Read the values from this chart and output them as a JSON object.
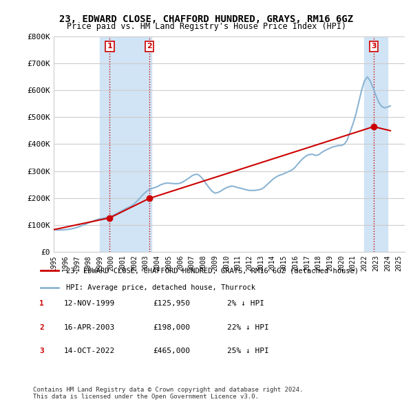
{
  "title": "23, EDWARD CLOSE, CHAFFORD HUNDRED, GRAYS, RM16 6GZ",
  "subtitle": "Price paid vs. HM Land Registry's House Price Index (HPI)",
  "ylabel_ticks": [
    "£0",
    "£100K",
    "£200K",
    "£300K",
    "£400K",
    "£500K",
    "£600K",
    "£700K",
    "£800K"
  ],
  "ytick_values": [
    0,
    100000,
    200000,
    300000,
    400000,
    500000,
    600000,
    700000,
    800000
  ],
  "ylim": [
    0,
    800000
  ],
  "xlim_start": 1995.0,
  "xlim_end": 2025.5,
  "sale_dates": [
    1999.87,
    2003.29,
    2022.79
  ],
  "sale_prices": [
    125950,
    198000,
    465000
  ],
  "sale_labels": [
    "1",
    "2",
    "3"
  ],
  "hpi_line_color": "#8ab4d4",
  "price_line_color": "#cc0000",
  "sale_marker_color": "#cc0000",
  "vline_color": "#cc0000",
  "vline_style": ":",
  "highlight_box_color": "#d0e4f5",
  "highlight_boxes": [
    {
      "x_start": 1999.0,
      "x_end": 2003.5
    },
    {
      "x_start": 2022.0,
      "x_end": 2024.0
    }
  ],
  "legend_line1": "23, EDWARD CLOSE, CHAFFORD HUNDRED, GRAYS, RM16 6GZ (detached house)",
  "legend_line2": "HPI: Average price, detached house, Thurrock",
  "table_rows": [
    {
      "num": "1",
      "date": "12-NOV-1999",
      "price": "£125,950",
      "change": "2% ↓ HPI"
    },
    {
      "num": "2",
      "date": "16-APR-2003",
      "price": "£198,000",
      "change": "22% ↓ HPI"
    },
    {
      "num": "3",
      "date": "14-OCT-2022",
      "price": "£465,000",
      "change": "25% ↓ HPI"
    }
  ],
  "footer_text": "Contains HM Land Registry data © Crown copyright and database right 2024.\nThis data is licensed under the Open Government Licence v3.0.",
  "xtick_years": [
    1995,
    1996,
    1997,
    1998,
    1999,
    2000,
    2001,
    2002,
    2003,
    2004,
    2005,
    2006,
    2007,
    2008,
    2009,
    2010,
    2011,
    2012,
    2013,
    2014,
    2015,
    2016,
    2017,
    2018,
    2019,
    2020,
    2021,
    2022,
    2023,
    2024,
    2025
  ],
  "hpi_data_x": [
    1995.0,
    1995.25,
    1995.5,
    1995.75,
    1996.0,
    1996.25,
    1996.5,
    1996.75,
    1997.0,
    1997.25,
    1997.5,
    1997.75,
    1998.0,
    1998.25,
    1998.5,
    1998.75,
    1999.0,
    1999.25,
    1999.5,
    1999.75,
    2000.0,
    2000.25,
    2000.5,
    2000.75,
    2001.0,
    2001.25,
    2001.5,
    2001.75,
    2002.0,
    2002.25,
    2002.5,
    2002.75,
    2003.0,
    2003.25,
    2003.5,
    2003.75,
    2004.0,
    2004.25,
    2004.5,
    2004.75,
    2005.0,
    2005.25,
    2005.5,
    2005.75,
    2006.0,
    2006.25,
    2006.5,
    2006.75,
    2007.0,
    2007.25,
    2007.5,
    2007.75,
    2008.0,
    2008.25,
    2008.5,
    2008.75,
    2009.0,
    2009.25,
    2009.5,
    2009.75,
    2010.0,
    2010.25,
    2010.5,
    2010.75,
    2011.0,
    2011.25,
    2011.5,
    2011.75,
    2012.0,
    2012.25,
    2012.5,
    2012.75,
    2013.0,
    2013.25,
    2013.5,
    2013.75,
    2014.0,
    2014.25,
    2014.5,
    2014.75,
    2015.0,
    2015.25,
    2015.5,
    2015.75,
    2016.0,
    2016.25,
    2016.5,
    2016.75,
    2017.0,
    2017.25,
    2017.5,
    2017.75,
    2018.0,
    2018.25,
    2018.5,
    2018.75,
    2019.0,
    2019.25,
    2019.5,
    2019.75,
    2020.0,
    2020.25,
    2020.5,
    2020.75,
    2021.0,
    2021.25,
    2021.5,
    2021.75,
    2022.0,
    2022.25,
    2022.5,
    2022.75,
    2023.0,
    2023.25,
    2023.5,
    2023.75,
    2024.0,
    2024.25
  ],
  "hpi_data_y": [
    82000,
    81000,
    80500,
    81000,
    82000,
    83000,
    85000,
    87000,
    90000,
    94000,
    98000,
    102000,
    107000,
    111000,
    115000,
    119000,
    122000,
    124000,
    126000,
    128000,
    132000,
    137000,
    142000,
    148000,
    154000,
    160000,
    165000,
    170000,
    178000,
    188000,
    200000,
    212000,
    222000,
    230000,
    235000,
    238000,
    242000,
    248000,
    252000,
    255000,
    255000,
    254000,
    253000,
    253000,
    255000,
    260000,
    267000,
    274000,
    282000,
    287000,
    288000,
    280000,
    268000,
    252000,
    238000,
    225000,
    218000,
    220000,
    225000,
    232000,
    238000,
    242000,
    244000,
    242000,
    238000,
    236000,
    233000,
    230000,
    228000,
    228000,
    228000,
    230000,
    232000,
    238000,
    248000,
    258000,
    268000,
    276000,
    282000,
    286000,
    290000,
    295000,
    300000,
    305000,
    315000,
    328000,
    340000,
    350000,
    358000,
    362000,
    362000,
    358000,
    360000,
    368000,
    375000,
    380000,
    385000,
    390000,
    392000,
    395000,
    395000,
    400000,
    415000,
    445000,
    475000,
    510000,
    555000,
    600000,
    635000,
    650000,
    635000,
    610000,
    580000,
    555000,
    540000,
    535000,
    538000,
    542000
  ],
  "price_data_x": [
    1995.0,
    1999.87,
    2003.29,
    2022.79,
    2024.25
  ],
  "price_data_y": [
    82000,
    125950,
    198000,
    465000,
    450000
  ],
  "bg_color": "#ffffff",
  "grid_color": "#cccccc",
  "plot_bg_color": "#ffffff"
}
